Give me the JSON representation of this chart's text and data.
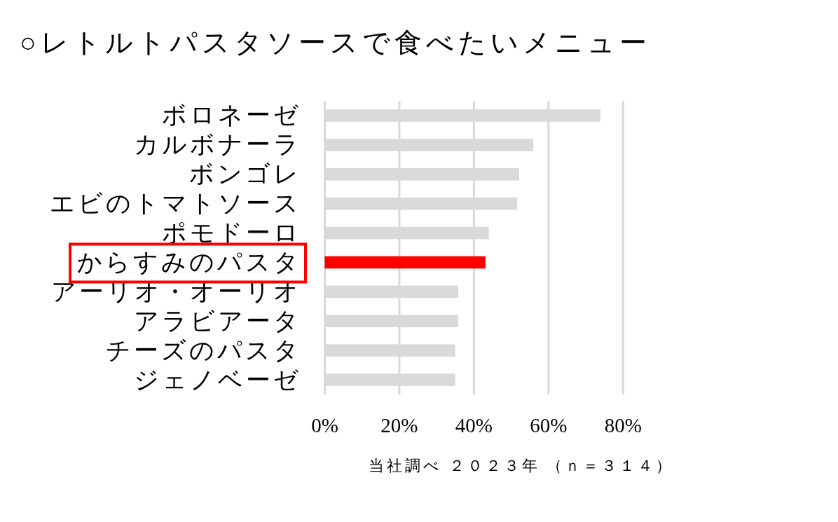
{
  "chart_data": {
    "type": "bar",
    "orientation": "horizontal",
    "title": "○レトルトパスタソースで食べたいメニュー",
    "categories": [
      "ボロネーゼ",
      "カルボナーラ",
      "ボンゴレ",
      "エビのトマトソース",
      "ポモドーロ",
      "からすみのパスタ",
      "アーリオ・オーリオ",
      "アラビアータ",
      "チーズのパスタ",
      "ジェノベーゼ"
    ],
    "values": [
      73.9,
      55.9,
      52.1,
      51.6,
      44.0,
      43.1,
      35.8,
      35.8,
      35.0,
      35.0
    ],
    "colors": [
      "#d9d9d9",
      "#d9d9d9",
      "#d9d9d9",
      "#d9d9d9",
      "#d9d9d9",
      "#ff0000",
      "#d9d9d9",
      "#d9d9d9",
      "#d9d9d9",
      "#d9d9d9"
    ],
    "xlim": [
      0,
      80
    ],
    "xticks": [
      {
        "value": 0,
        "label": "0%"
      },
      {
        "value": 20,
        "label": "20%"
      },
      {
        "value": 40,
        "label": "40%"
      },
      {
        "value": 60,
        "label": "60%"
      },
      {
        "value": 80,
        "label": "80%"
      }
    ],
    "grid": "x",
    "annotations": [
      "当社調べ ２０２３年 （ｎ＝３１４）"
    ]
  }
}
